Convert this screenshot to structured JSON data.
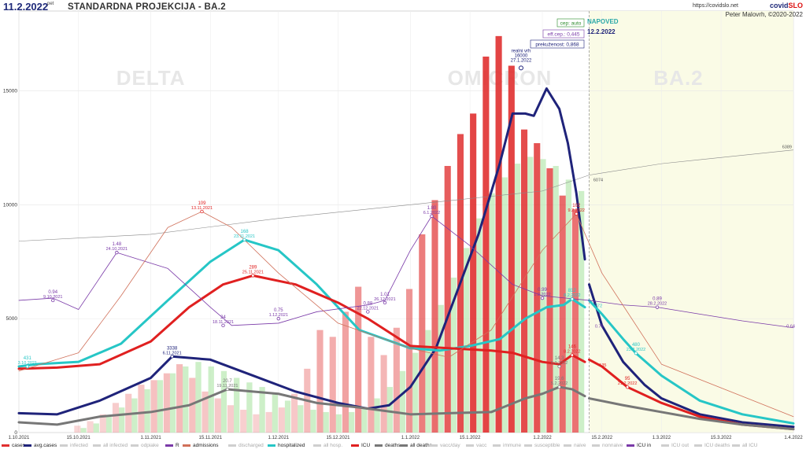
{
  "header": {
    "date": "11.2.2022",
    "date_suffix": "pet",
    "title": "STANDARDNA PROJEKCIJA - BA.2",
    "url": "https://covidslo.net",
    "brand_a": "covid",
    "brand_b": "SLO",
    "author": "Peter Malovrh, ©2020-2022"
  },
  "colors": {
    "cases": "#e03030",
    "avg_cases": "#1f237a",
    "hospitalized": "#26c6c6",
    "icu": "#e02020",
    "deaths": "#777777",
    "r": "#7a3aa8",
    "admissions": "#d0705a",
    "forecast_bg": "#fafbe6",
    "recovered": "#b8e8b0"
  },
  "chart_data": {
    "type": "line",
    "x_start": "1.10.2021",
    "x_end": "1.4.2022",
    "forecast_start": "12.2.2022",
    "x_ticks": [
      "1.10.2021",
      "15.10.2021",
      "1.11.2021",
      "15.11.2021",
      "1.12.2021",
      "15.12.2021",
      "1.1.2022",
      "15.1.2022",
      "1.2.2022",
      "15.2.2022",
      "1.3.2022",
      "15.3.2022",
      "1.4.2022"
    ],
    "y_ticks": [
      0,
      5000,
      10000,
      15000
    ],
    "ylim": [
      0,
      18500
    ],
    "watermarks": [
      "DELTA",
      "OMICRON",
      "BA.2"
    ],
    "boxes": {
      "cep": "cep: auto",
      "eff": "eff.cep.: 0,445",
      "prek": "prekuženost: 0,868",
      "napoved": "NAPOVED",
      "napoved_date": "12.2.2022"
    },
    "peak": {
      "label": "realni vrh",
      "value": "16000",
      "date": "27.1.2022"
    },
    "series": [
      {
        "name": "avg.cases",
        "key": "avg_cases",
        "width": 3,
        "x": [
          "1.10.2021",
          "10.10.2021",
          "20.10.2021",
          "1.11.2021",
          "6.11.2021",
          "15.11.2021",
          "25.11.2021",
          "5.12.2021",
          "15.12.2021",
          "22.12.2021",
          "27.12.2021",
          "1.1.2022",
          "7.1.2022",
          "12.1.2022",
          "17.1.2022",
          "22.1.2022",
          "25.1.2022",
          "28.1.2022",
          "30.1.2022",
          "2.2.2022",
          "5.2.2022",
          "7.2.2022",
          "9.2.2022",
          "11.2.2022"
        ],
        "y": [
          850,
          800,
          1400,
          2400,
          3338,
          3200,
          2500,
          1800,
          1300,
          1050,
          1200,
          2000,
          3700,
          6200,
          8700,
          11800,
          14000,
          14000,
          13900,
          15100,
          14200,
          12700,
          10500,
          7600
        ]
      },
      {
        "name": "",
        "key": "avg_cases",
        "width": 3,
        "x": [
          "12.2.2022",
          "15.2.2022",
          "20.2.2022",
          "25.2.2022",
          "1.3.2022",
          "10.3.2022",
          "20.3.2022",
          "1.4.2022"
        ],
        "y": [
          6500,
          4700,
          3100,
          2100,
          1500,
          800,
          450,
          250
        ]
      },
      {
        "name": "hospitalized",
        "key": "hospitalized",
        "width": 3,
        "x": [
          "1.10.2021",
          "5.10.2021",
          "15.10.2021",
          "25.10.2021",
          "5.11.2021",
          "15.11.2021",
          "23.11.2021",
          "1.12.2021",
          "10.12.2021",
          "20.12.2021",
          "1.1.2022",
          "8.1.2022",
          "15.1.2022",
          "22.1.2022",
          "28.1.2022",
          "2.2.2022",
          "6.2.2022",
          "8.2.2022",
          "11.2.2022"
        ],
        "y": [
          2900,
          3000,
          3100,
          3900,
          5800,
          7500,
          8460,
          8000,
          6500,
          4500,
          3700,
          3600,
          3800,
          4100,
          5000,
          5500,
          5600,
          5860,
          5500
        ]
      },
      {
        "name": "",
        "key": "hospitalized",
        "width": 3,
        "x": [
          "12.2.2022",
          "15.2.2022",
          "20.2.2022",
          "23.2.2022",
          "1.3.2022",
          "10.3.2022",
          "20.3.2022",
          "1.4.2022"
        ],
        "y": [
          5800,
          5200,
          4100,
          3480,
          2500,
          1400,
          800,
          400
        ]
      },
      {
        "name": "ICU",
        "key": "icu",
        "width": 3,
        "x": [
          "1.10.2021",
          "10.10.2021",
          "20.10.2021",
          "1.11.2021",
          "10.11.2021",
          "18.11.2021",
          "25.11.2021",
          "5.12.2021",
          "15.12.2021",
          "22.12.2021",
          "1.1.2022",
          "10.1.2022",
          "20.1.2022",
          "25.1.2022",
          "1.2.2022",
          "5.2.2022",
          "8.2.2022",
          "11.2.2022"
        ],
        "y": [
          2800,
          2850,
          3000,
          4000,
          5500,
          6500,
          6889,
          6500,
          5700,
          5000,
          3800,
          3700,
          3600,
          3500,
          3100,
          3000,
          3400,
          3100
        ]
      },
      {
        "name": "",
        "key": "icu",
        "width": 3,
        "x": [
          "12.2.2022",
          "15.2.2022",
          "21.2.2022",
          "1.3.2022",
          "10.3.2022",
          "20.3.2022",
          "1.4.2022"
        ],
        "y": [
          3200,
          2900,
          1995,
          1300,
          700,
          350,
          150
        ]
      },
      {
        "name": "all deaths",
        "key": "deaths",
        "width": 3,
        "x": [
          "1.10.2021",
          "10.10.2021",
          "20.10.2021",
          "1.11.2021",
          "10.11.2021",
          "19.11.2021",
          "1.12.2021",
          "10.12.2021",
          "20.12.2021",
          "1.1.2022",
          "10.1.2022",
          "20.1.2022",
          "28.1.2022",
          "1.2.2022",
          "5.2.2022",
          "8.2.2022",
          "11.2.2022"
        ],
        "y": [
          450,
          350,
          700,
          900,
          1200,
          1900,
          1700,
          1300,
          1100,
          800,
          850,
          900,
          1500,
          1700,
          2000,
          1900,
          1600
        ]
      },
      {
        "name": "",
        "key": "deaths",
        "width": 3,
        "x": [
          "12.2.2022",
          "20.2.2022",
          "1.3.2022",
          "10.3.2022",
          "20.3.2022",
          "1.4.2022"
        ],
        "y": [
          1500,
          1200,
          900,
          600,
          350,
          150
        ]
      },
      {
        "name": "R",
        "key": "r",
        "width": 0.8,
        "x": [
          "1.10.2021",
          "9.10.2021",
          "15.10.2021",
          "24.10.2021",
          "5.11.2021",
          "15.11.2021",
          "20.11.2021",
          "1.12.2021",
          "10.12.2021",
          "22.12.2021",
          "26.12.2021",
          "1.1.2022",
          "6.1.2022",
          "15.1.2022",
          "25.1.2022",
          "1.2.2022",
          "12.2.2022",
          "20.2.2022",
          "28.2.2022",
          "10.3.2022",
          "20.3.2022",
          "1.4.2022"
        ],
        "y": [
          5800,
          5900,
          5400,
          7900,
          7200,
          5500,
          4700,
          4800,
          5300,
          5600,
          5800,
          8000,
          9500,
          8200,
          6500,
          6000,
          5800,
          5600,
          5500,
          5200,
          4900,
          4600
        ]
      },
      {
        "name": "admissions",
        "key": "admissions",
        "width": 0.8,
        "x": [
          "1.10.2021",
          "15.10.2021",
          "25.10.2021",
          "5.11.2021",
          "13.11.2021",
          "20.11.2021",
          "1.12.2021",
          "15.12.2021",
          "1.1.2022",
          "10.1.2022",
          "20.1.2022",
          "1.2.2022",
          "9.2.2022",
          "15.2.2022",
          "1.3.2022",
          "1.4.2022"
        ],
        "y": [
          2700,
          3500,
          6000,
          9000,
          9700,
          9000,
          7000,
          4800,
          3700,
          3300,
          4500,
          8000,
          9600,
          7000,
          3000,
          700
        ]
      }
    ],
    "reference_line": {
      "name": "all infected",
      "key": "deaths",
      "x": [
        "1.10.2021",
        "1.11.2021",
        "1.12.2021",
        "1.1.2022",
        "1.2.2022",
        "12.2.2022",
        "1.3.2022",
        "1.4.2022"
      ],
      "y": [
        8400,
        8700,
        9400,
        10000,
        10600,
        11300,
        11800,
        12400
      ],
      "labels": [
        "6074",
        "6389"
      ]
    },
    "bar_cases": [
      300,
      500,
      800,
      1300,
      1700,
      2100,
      2300,
      2600,
      3000,
      2400,
      1800,
      1500,
      1200,
      1000,
      800,
      900,
      1100,
      1700,
      2800,
      4500,
      4200,
      5300,
      6400,
      4200,
      3400,
      4600,
      6300,
      8700,
      10200,
      11700,
      13100,
      14000,
      16500,
      17400,
      16100,
      13300,
      12700,
      11600,
      10400,
      9800
    ],
    "bar_recovered": [
      200,
      400,
      700,
      1100,
      1500,
      1900,
      2300,
      2600,
      2900,
      3100,
      2900,
      2700,
      2400,
      2200,
      2000,
      1700,
      1400,
      1200,
      1000,
      900,
      800,
      900,
      1100,
      1500,
      2000,
      2700,
      3500,
      4500,
      5600,
      6800,
      8100,
      9400,
      10500,
      11200,
      11800,
      12100,
      12000,
      11700,
      11100,
      10600
    ],
    "annotations": [
      {
        "key": "hospitalized",
        "date": "3.10.2021",
        "y": 2900,
        "value": "431",
        "date_label": "3.10.2021"
      },
      {
        "key": "r",
        "date": "9.10.2021",
        "y": 5800,
        "value": "0.94",
        "date_label": "9.10.2021"
      },
      {
        "key": "r",
        "date": "24.10.2021",
        "y": 7900,
        "value": "1.48",
        "date_label": "24.10.2021"
      },
      {
        "key": "avg_cases",
        "date": "6.11.2021",
        "y": 3338,
        "value": "3338",
        "date_label": "6.11.2021"
      },
      {
        "key": "icu",
        "date": "13.11.2021",
        "y": 9700,
        "value": "109",
        "date_label": "13.11.2021"
      },
      {
        "key": "r",
        "date": "18.11.2021",
        "y": 4700,
        "value": "24",
        "date_label": "18.11.2021"
      },
      {
        "key": "deaths",
        "date": "19.11.2021",
        "y": 1900,
        "value": "20.7",
        "date_label": "19.11.2021"
      },
      {
        "key": "hospitalized",
        "date": "23.11.2021",
        "y": 8460,
        "value": "168",
        "date_label": "23.11.2021"
      },
      {
        "key": "icu",
        "date": "25.11.2021",
        "y": 6889,
        "value": "289",
        "date_label": "25.11.2021"
      },
      {
        "key": "r",
        "date": "1.12.2021",
        "y": 5000,
        "value": "0.75",
        "date_label": "1.12.2021"
      },
      {
        "key": "r",
        "date": "22.12.2021",
        "y": 5300,
        "value": "0.88",
        "date_label": "22.12.2021"
      },
      {
        "key": "r",
        "date": "26.12.2021",
        "y": 5700,
        "value": "1.01",
        "date_label": "26.12.2021"
      },
      {
        "key": "r",
        "date": "6.1.2022",
        "y": 9500,
        "value": "1.80",
        "date_label": "6.1.2022"
      },
      {
        "key": "r",
        "date": "1.2.2022",
        "y": 5900,
        "value": "0.99",
        "date_label": "1.2.2022"
      },
      {
        "key": "deaths",
        "date": "5.2.2022",
        "y": 2000,
        "value": "19.6",
        "date_label": "5.2.2022"
      },
      {
        "key": "deaths",
        "date": "5.2.2022",
        "y": 2900,
        "value": "14.3",
        "date_label": "5.2.2022"
      },
      {
        "key": "icu",
        "date": "8.2.2022",
        "y": 3400,
        "value": "146",
        "date_label": "8.2.2022"
      },
      {
        "key": "hospitalized",
        "date": "8.2.2022",
        "y": 5860,
        "value": "812",
        "date_label": "8.2.2022"
      },
      {
        "key": "icu",
        "date": "9.2.2022",
        "y": 9600,
        "value": "102",
        "date_label": "9.2.2022"
      },
      {
        "key": "icu",
        "date": "21.2.2022",
        "y": 1995,
        "value": "95",
        "date_label": "21.2.2022"
      },
      {
        "key": "hospitalized",
        "date": "23.2.2022",
        "y": 3480,
        "value": "480",
        "date_label": "23.2.2022"
      },
      {
        "key": "r",
        "date": "28.2.2022",
        "y": 5500,
        "value": "0.89",
        "date_label": "28.2.2022"
      }
    ],
    "small_labels": [
      {
        "key": "hospitalized",
        "date": "13.2.2022",
        "y": 5500,
        "text": "772"
      },
      {
        "key": "r",
        "date": "13.2.2022",
        "y": 4600,
        "text": "0.75"
      },
      {
        "key": "icu",
        "date": "14.2.2022",
        "y": 2900,
        "text": "135"
      },
      {
        "key": "r",
        "date": "1.4.2022",
        "y": 4600,
        "text": "0.64"
      }
    ]
  },
  "legend": [
    {
      "label": "cases",
      "key": "cases",
      "dim": false
    },
    {
      "label": "avg.cases",
      "key": "avg_cases",
      "dim": false
    },
    {
      "label": "infected",
      "key": "",
      "dim": true
    },
    {
      "label": "all infected",
      "key": "",
      "dim": true
    },
    {
      "label": "odpiake",
      "key": "",
      "dim": true
    },
    {
      "label": "R",
      "key": "r",
      "dim": false
    },
    {
      "label": "admissions",
      "key": "admissions",
      "dim": false
    },
    {
      "label": "discharged",
      "key": "",
      "dim": true
    },
    {
      "label": "hospitalized",
      "key": "hospitalized",
      "dim": false
    },
    {
      "label": "all hosp.",
      "key": "",
      "dim": true
    },
    {
      "label": "ICU",
      "key": "icu",
      "dim": false
    },
    {
      "label": "deaths",
      "key": "deaths",
      "dim": false
    },
    {
      "label": "all deaths",
      "key": "deaths",
      "dim": false
    },
    {
      "label": "vacc/day",
      "key": "",
      "dim": true
    },
    {
      "label": "vacc",
      "key": "",
      "dim": true
    },
    {
      "label": "immune",
      "key": "",
      "dim": true
    },
    {
      "label": "susceptible",
      "key": "",
      "dim": true
    },
    {
      "label": "naive",
      "key": "",
      "dim": true
    },
    {
      "label": "nonnaive",
      "key": "",
      "dim": true
    },
    {
      "label": "ICU in",
      "key": "r",
      "dim": false
    },
    {
      "label": "ICU out",
      "key": "",
      "dim": true
    },
    {
      "label": "ICU deaths",
      "key": "",
      "dim": true
    },
    {
      "label": "all ICU",
      "key": "",
      "dim": true
    }
  ]
}
